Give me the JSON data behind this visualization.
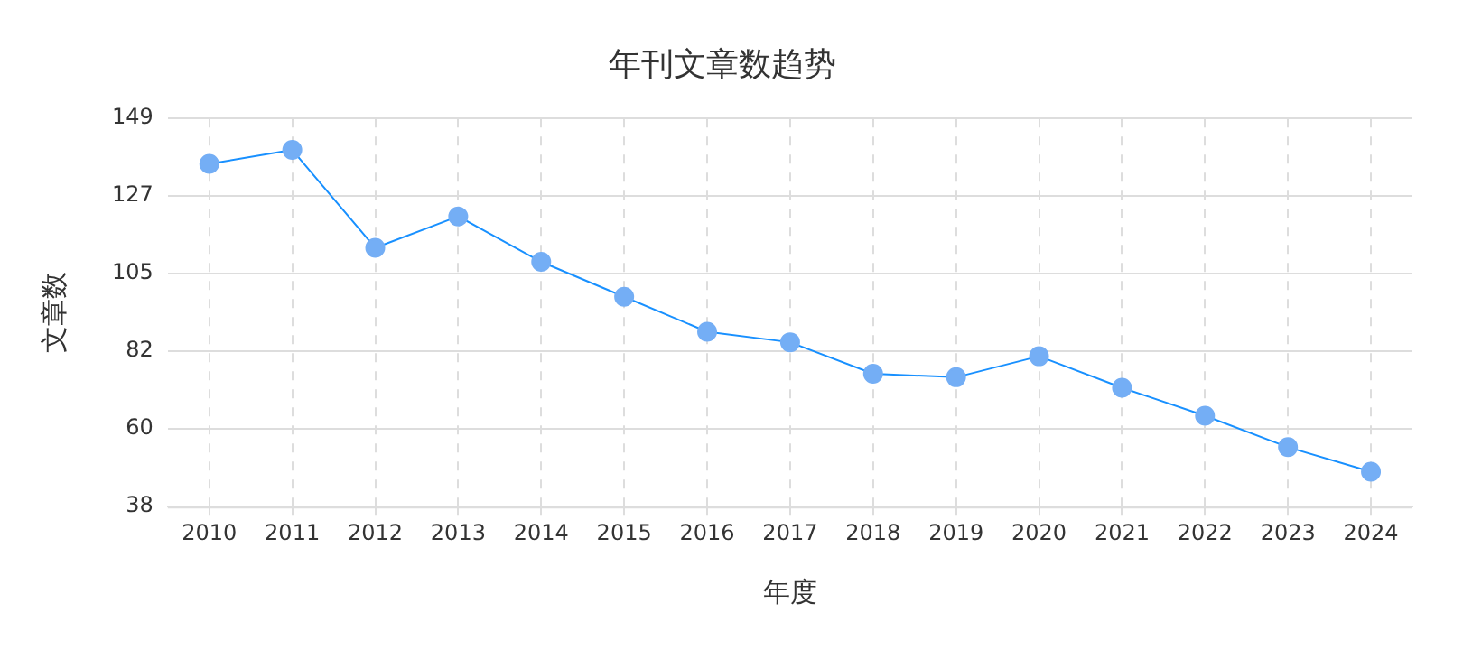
{
  "chart_data": {
    "type": "line",
    "title": "年刊文章数趋势",
    "xlabel": "年度",
    "ylabel": "文章数",
    "categories": [
      "2010",
      "2011",
      "2012",
      "2013",
      "2014",
      "2015",
      "2016",
      "2017",
      "2018",
      "2019",
      "2020",
      "2021",
      "2022",
      "2023",
      "2024"
    ],
    "series": [
      {
        "color": "#1890ff",
        "values": [
          136,
          140,
          112,
          121,
          108,
          98,
          88,
          85,
          76,
          75,
          81,
          72,
          64,
          55,
          48
        ]
      }
    ],
    "ylim": [
      38,
      149
    ],
    "yticks": [
      38,
      {
        "value": 60.2,
        "label": "60"
      },
      {
        "value": 82.4,
        "label": "82"
      },
      {
        "value": 104.6,
        "label": "105"
      },
      {
        "value": 126.8,
        "label": "127"
      },
      149
    ],
    "grid": true,
    "marker": "circle",
    "line_style": "solid",
    "legend": false
  }
}
